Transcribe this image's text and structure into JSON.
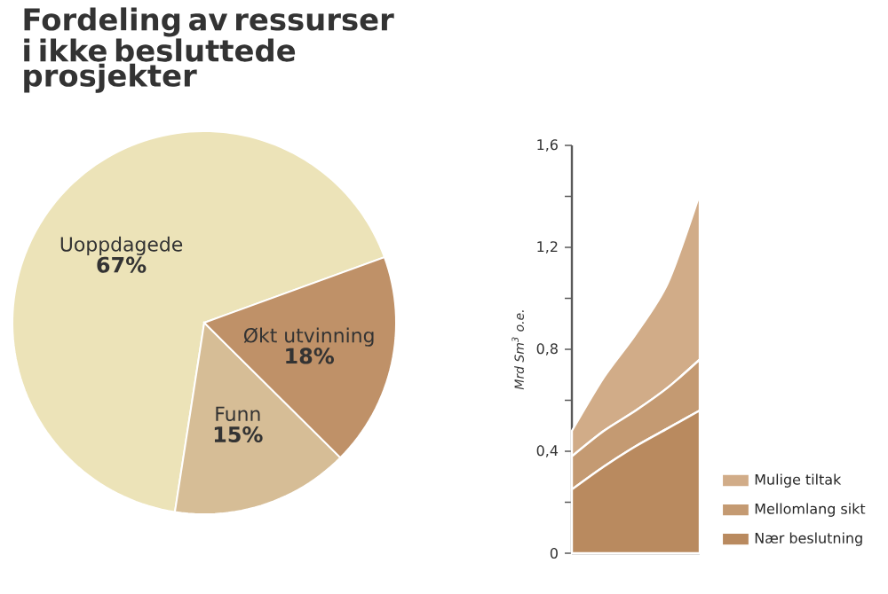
{
  "chart_data": [
    {
      "type": "pie",
      "title": "Fordeling av ressurser i ikke besluttede prosjekter",
      "categories": [
        "Uoppdagede",
        "Funn",
        "Økt utvinning"
      ],
      "values": [
        67,
        15,
        18
      ],
      "value_labels": [
        "67%",
        "15%",
        "18%"
      ],
      "colors": [
        "#ece3b8",
        "#d6bd96",
        "#bf9168"
      ]
    },
    {
      "type": "area",
      "stacked": true,
      "ylabel": "Mrd Sm$^{3}$ o.e.",
      "categories": [
        null,
        null,
        null,
        null,
        null
      ],
      "ylim": [
        0,
        1.6
      ],
      "yticks": [
        0,
        {
          "value": 0.2,
          "label": null
        },
        {
          "value": 0.4,
          "label": "0,4"
        },
        {
          "value": 0.6,
          "label": null
        },
        {
          "value": 0.8,
          "label": "0,8"
        },
        {
          "value": 1.0,
          "label": null
        },
        {
          "value": 1.2,
          "label": "1,2"
        },
        {
          "value": 1.4,
          "label": null
        },
        {
          "value": 1.6,
          "label": "1,6"
        }
      ],
      "legend": "bottom right",
      "series": [
        {
          "name": "Nær beslutning",
          "color": "#b98a5f",
          "values": [
            0.25,
            0.34,
            0.42,
            0.49,
            0.56
          ]
        },
        {
          "name": "Mellomlang sikt",
          "color": "#c49a72",
          "values": [
            0.13,
            0.14,
            0.14,
            0.16,
            0.2
          ]
        },
        {
          "name": "Mulige tiltak",
          "color": "#d1ac88",
          "values": [
            0.1,
            0.21,
            0.3,
            0.41,
            0.65
          ]
        }
      ]
    }
  ]
}
